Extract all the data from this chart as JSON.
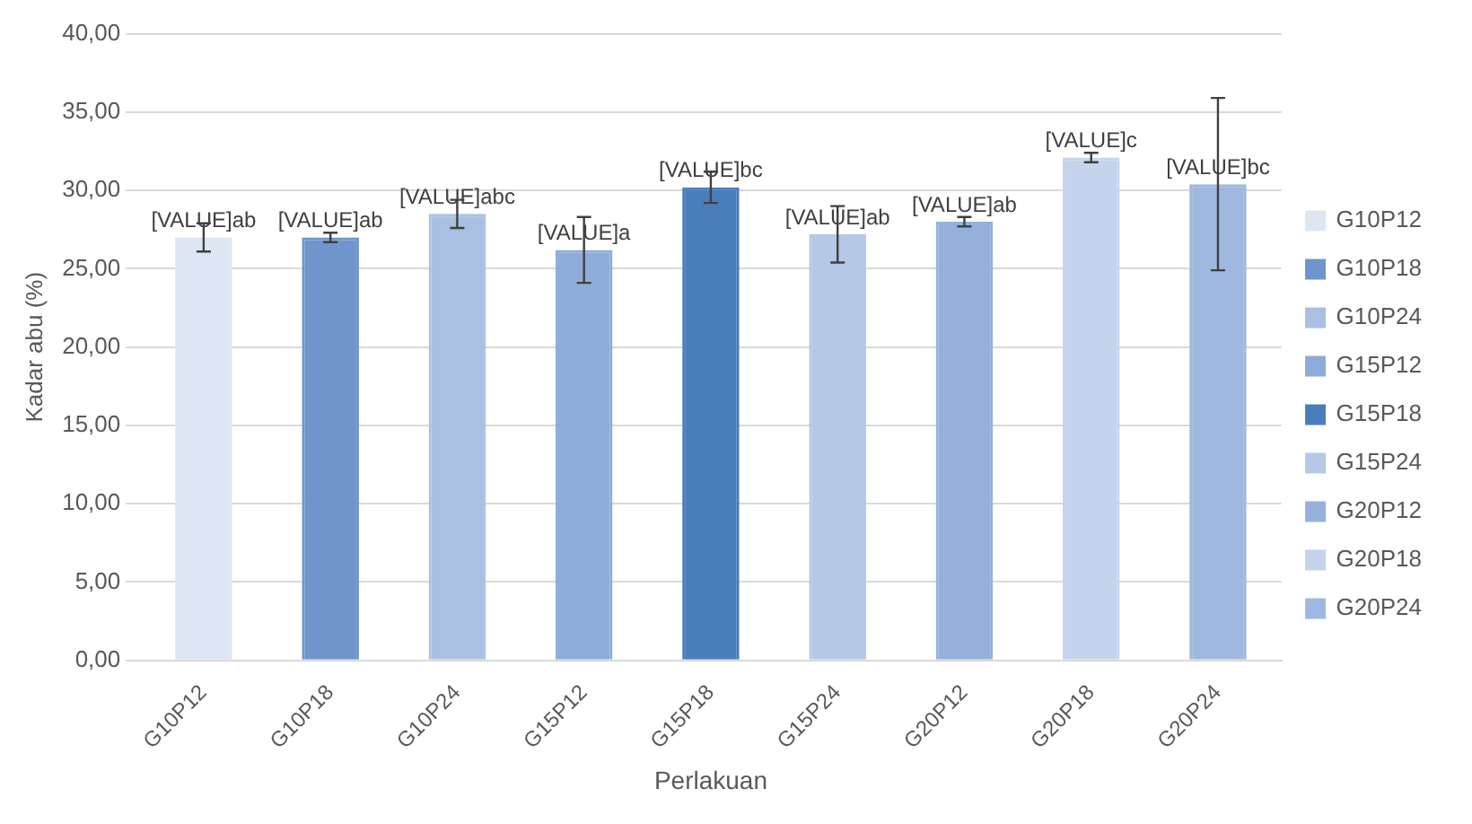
{
  "chart_data": {
    "type": "bar",
    "xlabel": "Perlakuan",
    "ylabel": "Kadar abu (%)",
    "categories": [
      "G10P12",
      "G10P18",
      "G10P24",
      "G15P12",
      "G15P18",
      "G15P24",
      "G20P12",
      "G20P18",
      "G20P24"
    ],
    "series": [
      {
        "name": "G10P12",
        "color": "#dde6f3",
        "values": [
          27.0,
          null,
          null,
          null,
          null,
          null,
          null,
          null,
          null
        ],
        "errors": [
          0.9,
          null,
          null,
          null,
          null,
          null,
          null,
          null,
          null
        ],
        "value_labels": [
          "[VALUE]ab",
          null,
          null,
          null,
          null,
          null,
          null,
          null,
          null
        ]
      },
      {
        "name": "G10P18",
        "color": "#6f95cc",
        "values": [
          null,
          27.0,
          null,
          null,
          null,
          null,
          null,
          null,
          null
        ],
        "errors": [
          null,
          0.3,
          null,
          null,
          null,
          null,
          null,
          null,
          null
        ],
        "value_labels": [
          null,
          "[VALUE]ab",
          null,
          null,
          null,
          null,
          null,
          null,
          null
        ]
      },
      {
        "name": "G10P24",
        "color": "#a9c0e2",
        "values": [
          null,
          null,
          28.5,
          null,
          null,
          null,
          null,
          null,
          null
        ],
        "errors": [
          null,
          null,
          0.9,
          null,
          null,
          null,
          null,
          null,
          null
        ],
        "value_labels": [
          null,
          null,
          "[VALUE]abc",
          null,
          null,
          null,
          null,
          null,
          null
        ]
      },
      {
        "name": "G15P12",
        "color": "#8eacd9",
        "values": [
          null,
          null,
          null,
          26.2,
          null,
          null,
          null,
          null,
          null
        ],
        "errors": [
          null,
          null,
          null,
          2.1,
          null,
          null,
          null,
          null,
          null
        ],
        "value_labels": [
          null,
          null,
          null,
          "[VALUE]a",
          null,
          null,
          null,
          null,
          null
        ]
      },
      {
        "name": "G15P18",
        "color": "#4a7ebb",
        "values": [
          null,
          null,
          null,
          null,
          30.2,
          null,
          null,
          null,
          null
        ],
        "errors": [
          null,
          null,
          null,
          null,
          1.0,
          null,
          null,
          null,
          null
        ],
        "value_labels": [
          null,
          null,
          null,
          null,
          "[VALUE]bc",
          null,
          null,
          null,
          null
        ]
      },
      {
        "name": "G15P24",
        "color": "#b5c8e6",
        "values": [
          null,
          null,
          null,
          null,
          null,
          27.2,
          null,
          null,
          null
        ],
        "errors": [
          null,
          null,
          null,
          null,
          null,
          1.8,
          null,
          null,
          null
        ],
        "value_labels": [
          null,
          null,
          null,
          null,
          null,
          "[VALUE]ab",
          null,
          null,
          null
        ]
      },
      {
        "name": "G20P12",
        "color": "#95b1db",
        "values": [
          null,
          null,
          null,
          null,
          null,
          null,
          28.0,
          null,
          null
        ],
        "errors": [
          null,
          null,
          null,
          null,
          null,
          null,
          0.3,
          null,
          null
        ],
        "value_labels": [
          null,
          null,
          null,
          null,
          null,
          null,
          "[VALUE]ab",
          null,
          null
        ]
      },
      {
        "name": "G20P18",
        "color": "#c4d4ec",
        "values": [
          null,
          null,
          null,
          null,
          null,
          null,
          null,
          32.1,
          null
        ],
        "errors": [
          null,
          null,
          null,
          null,
          null,
          null,
          null,
          0.3,
          null
        ],
        "value_labels": [
          null,
          null,
          null,
          null,
          null,
          null,
          null,
          "[VALUE]c",
          null
        ]
      },
      {
        "name": "G20P24",
        "color": "#9fb8df",
        "values": [
          null,
          null,
          null,
          null,
          null,
          null,
          null,
          null,
          30.4
        ],
        "errors": [
          null,
          null,
          null,
          null,
          null,
          null,
          null,
          null,
          5.5
        ],
        "value_labels": [
          null,
          null,
          null,
          null,
          null,
          null,
          null,
          null,
          "[VALUE]bc"
        ]
      }
    ],
    "ylim": [
      0,
      40
    ],
    "yticks": [
      {
        "value": 0,
        "label": "0,00"
      },
      {
        "value": 5,
        "label": "5,00"
      },
      {
        "value": 10,
        "label": "10,00"
      },
      {
        "value": 15,
        "label": "15,00"
      },
      {
        "value": 20,
        "label": "20,00"
      },
      {
        "value": 25,
        "label": "25,00"
      },
      {
        "value": 30,
        "label": "30,00"
      },
      {
        "value": 35,
        "label": "35,00"
      },
      {
        "value": 40,
        "label": "40,00"
      }
    ],
    "grid": "y",
    "legend": "right"
  }
}
